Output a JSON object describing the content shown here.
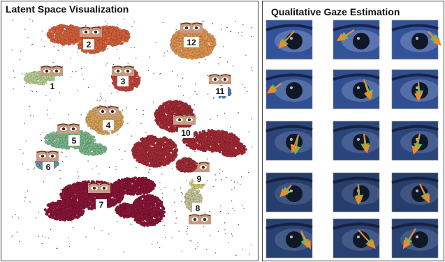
{
  "latent_space": {
    "title": "Latent Space Visualization",
    "clusters": [
      {
        "label": "1",
        "color": "#b9cf94"
      },
      {
        "label": "2",
        "color": "#d5603a"
      },
      {
        "label": "3",
        "color": "#c2443a"
      },
      {
        "label": "4",
        "color": "#d9a45a"
      },
      {
        "label": "5",
        "color": "#7cb88c"
      },
      {
        "label": "6",
        "color": "#6d9aa0"
      },
      {
        "label": "7",
        "color": "#8a1537"
      },
      {
        "label": "8",
        "color": "#c8c8a0"
      },
      {
        "label": "9",
        "color": "#d6c870"
      },
      {
        "label": "10",
        "color": "#a32a35"
      },
      {
        "label": "11",
        "color": "#5d7ea8"
      },
      {
        "label": "12",
        "color": "#e09550"
      }
    ]
  },
  "gaze_estimation": {
    "title": "Qualitative Gaze Estimation",
    "legend_colors": {
      "predicted": "#f08a2a",
      "ground_truth": "#5ec25a"
    }
  }
}
